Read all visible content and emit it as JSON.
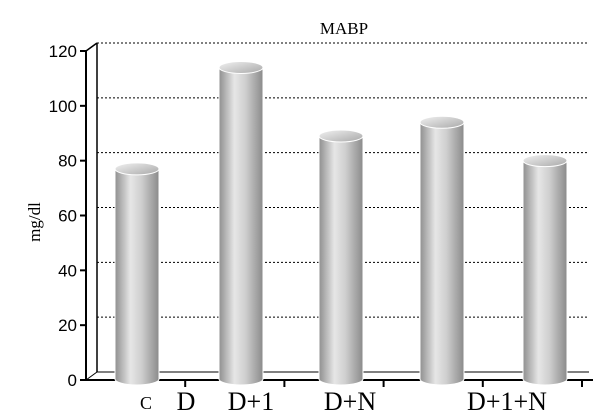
{
  "chart_data": {
    "type": "bar",
    "title": "MABP",
    "xlabel": "",
    "ylabel": "mg/dl",
    "categories": [
      "C",
      "D",
      "D+1",
      "D+N",
      "D+1+N"
    ],
    "values": [
      77,
      114,
      89,
      94,
      80
    ],
    "ylim": [
      0,
      120
    ],
    "yticks": [
      0,
      20,
      40,
      60,
      80,
      100,
      120
    ],
    "grid": true,
    "legend": "none",
    "bar_color": "#bdbdbd"
  }
}
